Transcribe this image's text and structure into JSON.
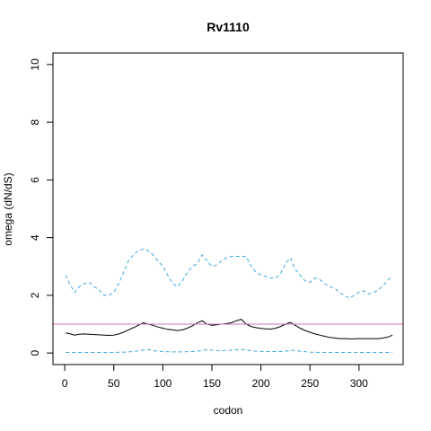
{
  "chart_data": {
    "type": "line",
    "title": "Rv1110",
    "xlabel": "codon",
    "ylabel": "omega (dN/dS)",
    "xlim": [
      -12,
      345
    ],
    "ylim": [
      -0.4,
      10.4
    ],
    "xticks": [
      0,
      50,
      100,
      150,
      200,
      250,
      300
    ],
    "yticks": [
      0,
      2,
      4,
      6,
      8,
      10
    ],
    "grid": false,
    "reference_line": {
      "y": 1,
      "color": "#d070c0"
    },
    "series": [
      {
        "color": "#3fa9e0",
        "style": "dashed",
        "x": [
          1,
          5,
          10,
          15,
          20,
          25,
          30,
          35,
          40,
          45,
          50,
          55,
          60,
          65,
          70,
          75,
          80,
          85,
          90,
          95,
          100,
          105,
          110,
          115,
          120,
          125,
          130,
          135,
          140,
          145,
          150,
          155,
          160,
          165,
          170,
          175,
          180,
          185,
          190,
          195,
          200,
          205,
          210,
          215,
          220,
          225,
          230,
          235,
          240,
          245,
          250,
          255,
          260,
          265,
          270,
          275,
          280,
          285,
          290,
          295,
          300,
          305,
          310,
          315,
          320,
          325,
          330,
          334
        ],
        "values": [
          2.7,
          2.4,
          2.1,
          2.3,
          2.4,
          2.45,
          2.3,
          2.2,
          2.0,
          2.0,
          2.1,
          2.4,
          2.8,
          3.2,
          3.4,
          3.55,
          3.6,
          3.55,
          3.4,
          3.2,
          3.0,
          2.7,
          2.4,
          2.3,
          2.5,
          2.8,
          3.0,
          3.1,
          3.4,
          3.2,
          3.0,
          3.05,
          3.2,
          3.3,
          3.35,
          3.35,
          3.35,
          3.35,
          3.0,
          2.8,
          2.7,
          2.65,
          2.6,
          2.6,
          2.75,
          3.1,
          3.3,
          2.9,
          2.7,
          2.5,
          2.45,
          2.6,
          2.55,
          2.4,
          2.3,
          2.25,
          2.1,
          2.0,
          1.9,
          2.0,
          2.1,
          2.15,
          2.05,
          2.1,
          2.2,
          2.35,
          2.55,
          2.65
        ]
      },
      {
        "color": "#000000",
        "style": "solid",
        "x": [
          1,
          5,
          10,
          15,
          20,
          25,
          30,
          35,
          40,
          45,
          50,
          55,
          60,
          65,
          70,
          75,
          80,
          85,
          90,
          95,
          100,
          105,
          110,
          115,
          120,
          125,
          130,
          135,
          140,
          145,
          150,
          155,
          160,
          165,
          170,
          175,
          180,
          185,
          190,
          195,
          200,
          205,
          210,
          215,
          220,
          225,
          230,
          235,
          240,
          245,
          250,
          255,
          260,
          265,
          270,
          275,
          280,
          285,
          290,
          295,
          300,
          305,
          310,
          315,
          320,
          325,
          330,
          334
        ],
        "values": [
          0.7,
          0.67,
          0.62,
          0.65,
          0.66,
          0.65,
          0.64,
          0.63,
          0.62,
          0.61,
          0.62,
          0.66,
          0.72,
          0.8,
          0.88,
          0.96,
          1.05,
          1.0,
          0.96,
          0.9,
          0.86,
          0.82,
          0.8,
          0.78,
          0.8,
          0.86,
          0.94,
          1.04,
          1.12,
          1.0,
          0.96,
          0.98,
          1.0,
          1.02,
          1.05,
          1.12,
          1.17,
          1.0,
          0.92,
          0.88,
          0.85,
          0.84,
          0.83,
          0.86,
          0.92,
          1.0,
          1.06,
          0.96,
          0.86,
          0.78,
          0.72,
          0.66,
          0.62,
          0.58,
          0.54,
          0.52,
          0.5,
          0.5,
          0.49,
          0.49,
          0.5,
          0.5,
          0.5,
          0.5,
          0.5,
          0.52,
          0.56,
          0.62
        ]
      },
      {
        "color": "#3fa9e0",
        "style": "dashed",
        "x": [
          1,
          10,
          20,
          30,
          40,
          50,
          60,
          70,
          80,
          85,
          90,
          100,
          110,
          120,
          130,
          140,
          145,
          150,
          160,
          170,
          180,
          190,
          200,
          210,
          220,
          230,
          235,
          240,
          250,
          260,
          270,
          280,
          290,
          300,
          310,
          320,
          330,
          334
        ],
        "values": [
          0.02,
          0.02,
          0.02,
          0.02,
          0.02,
          0.02,
          0.03,
          0.05,
          0.1,
          0.12,
          0.08,
          0.05,
          0.04,
          0.04,
          0.05,
          0.08,
          0.12,
          0.1,
          0.08,
          0.1,
          0.12,
          0.08,
          0.05,
          0.05,
          0.05,
          0.08,
          0.1,
          0.06,
          0.03,
          0.02,
          0.02,
          0.02,
          0.02,
          0.02,
          0.02,
          0.02,
          0.02,
          0.02
        ]
      }
    ]
  }
}
